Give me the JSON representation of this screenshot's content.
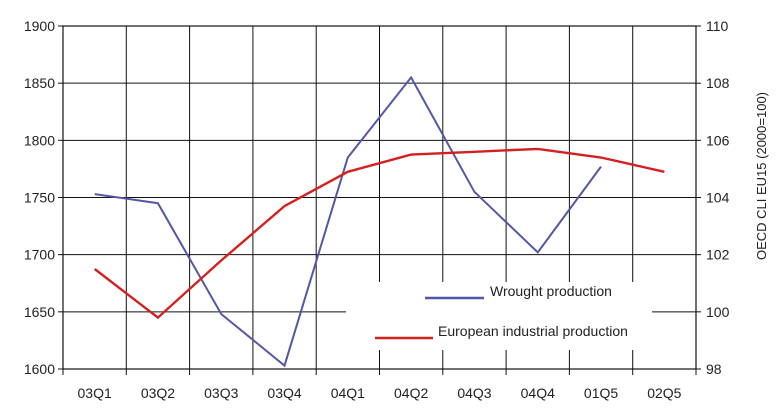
{
  "chart_data": {
    "type": "line",
    "title": "",
    "categories": [
      "03Q1",
      "03Q2",
      "03Q3",
      "03Q4",
      "04Q1",
      "04Q2",
      "04Q3",
      "04Q4",
      "01Q5",
      "02Q5"
    ],
    "ylim_left": [
      1600,
      1900
    ],
    "ylim_right": [
      98,
      110
    ],
    "yticks_left": [
      "1900",
      "1850",
      "1800",
      "1750",
      "1700",
      "1650",
      "1600"
    ],
    "yticks_right": [
      "110",
      "108",
      "106",
      "104",
      "102",
      "100",
      "98"
    ],
    "ylabel_right": "OECD CLI EU15 (2000=100)",
    "grid": true,
    "legend_position": "bottom-right",
    "series": [
      {
        "name": "Wrought production",
        "axis": "left",
        "color": "#5557a6",
        "values": [
          1753,
          1745,
          1648,
          1603,
          1785,
          1855,
          1755,
          1702,
          1777,
          null
        ]
      },
      {
        "name": "European industrial production",
        "axis": "right",
        "color": "#d42020",
        "values": [
          101.5,
          99.8,
          101.8,
          103.7,
          104.9,
          105.5,
          105.6,
          105.7,
          105.4,
          104.9
        ]
      }
    ]
  }
}
